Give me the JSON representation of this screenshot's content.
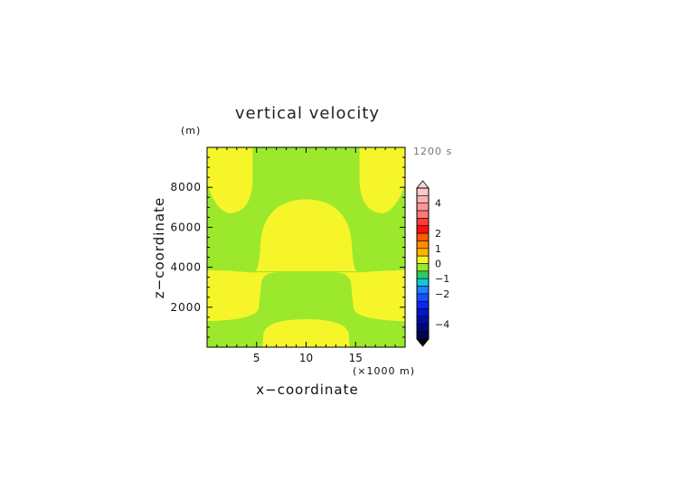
{
  "chart_data": {
    "type": "heatmap",
    "title": "vertical velocity",
    "time_label": "1200 s",
    "xlabel": "x−coordinate",
    "ylabel": "z−coordinate",
    "x_unit": "(×1000 m)",
    "y_unit": "(m)",
    "xlim": [
      0,
      20
    ],
    "ylim": [
      0,
      10000
    ],
    "x_ticks": [
      {
        "value": 5,
        "label": "5"
      },
      {
        "value": 10,
        "label": "10"
      },
      {
        "value": 15,
        "label": "15"
      }
    ],
    "y_ticks": [
      {
        "value": 2000,
        "label": "2000"
      },
      {
        "value": 4000,
        "label": "4000"
      },
      {
        "value": 6000,
        "label": "6000"
      },
      {
        "value": 8000,
        "label": "8000"
      }
    ],
    "field_colors": {
      "positive": "#f5f52a",
      "near_zero": "#9be82c"
    },
    "regions": [
      {
        "name": "lower-center-updraft",
        "x_range": [
          5.5,
          14.5
        ],
        "z_range": [
          0,
          1400
        ]
      },
      {
        "name": "lower-side-bands",
        "x_range": [
          0,
          20
        ],
        "z_range": [
          1300,
          3800
        ]
      },
      {
        "name": "upper-center-updraft",
        "x_range": [
          5,
          15
        ],
        "z_range": [
          3800,
          7400
        ]
      },
      {
        "name": "upper-left-updraft",
        "x_range": [
          0,
          4.6
        ],
        "z_range": [
          6700,
          10000
        ]
      },
      {
        "name": "upper-right-updraft",
        "x_range": [
          15.4,
          20
        ],
        "z_range": [
          6700,
          10000
        ]
      }
    ],
    "colorbar": {
      "range": [
        -5,
        5
      ],
      "tick_labels": [
        {
          "value": 4,
          "label": "4"
        },
        {
          "value": 2,
          "label": "2"
        },
        {
          "value": 1,
          "label": "1"
        },
        {
          "value": 0,
          "label": "0"
        },
        {
          "value": -1,
          "label": "−1"
        },
        {
          "value": -2,
          "label": "−2"
        },
        {
          "value": -4,
          "label": "−4"
        }
      ],
      "levels": [
        {
          "from": 4.5,
          "to": 5,
          "color": "#ffc8c8"
        },
        {
          "from": 4,
          "to": 4.5,
          "color": "#ffb0b0"
        },
        {
          "from": 3.5,
          "to": 4,
          "color": "#ff9696"
        },
        {
          "from": 3,
          "to": 3.5,
          "color": "#ff7878"
        },
        {
          "from": 2.5,
          "to": 3,
          "color": "#ff3c3c"
        },
        {
          "from": 2,
          "to": 2.5,
          "color": "#ff1010"
        },
        {
          "from": 1.5,
          "to": 2,
          "color": "#ff5a00"
        },
        {
          "from": 1,
          "to": 1.5,
          "color": "#ff8c00"
        },
        {
          "from": 0.5,
          "to": 1,
          "color": "#ffb400"
        },
        {
          "from": 0,
          "to": 0.5,
          "color": "#f5f52a"
        },
        {
          "from": -0.5,
          "to": 0,
          "color": "#9be82c"
        },
        {
          "from": -1,
          "to": -0.5,
          "color": "#30c860"
        },
        {
          "from": -1.5,
          "to": -1,
          "color": "#10c8d8"
        },
        {
          "from": -2,
          "to": -1.5,
          "color": "#1e82ff"
        },
        {
          "from": -2.5,
          "to": -2,
          "color": "#1450ff"
        },
        {
          "from": -3,
          "to": -2.5,
          "color": "#0a28f0"
        },
        {
          "from": -3.5,
          "to": -3,
          "color": "#0014c8"
        },
        {
          "from": -4,
          "to": -3.5,
          "color": "#000ca0"
        },
        {
          "from": -4.5,
          "to": -4,
          "color": "#000878"
        },
        {
          "from": -5,
          "to": -4.5,
          "color": "#000450"
        }
      ]
    }
  }
}
